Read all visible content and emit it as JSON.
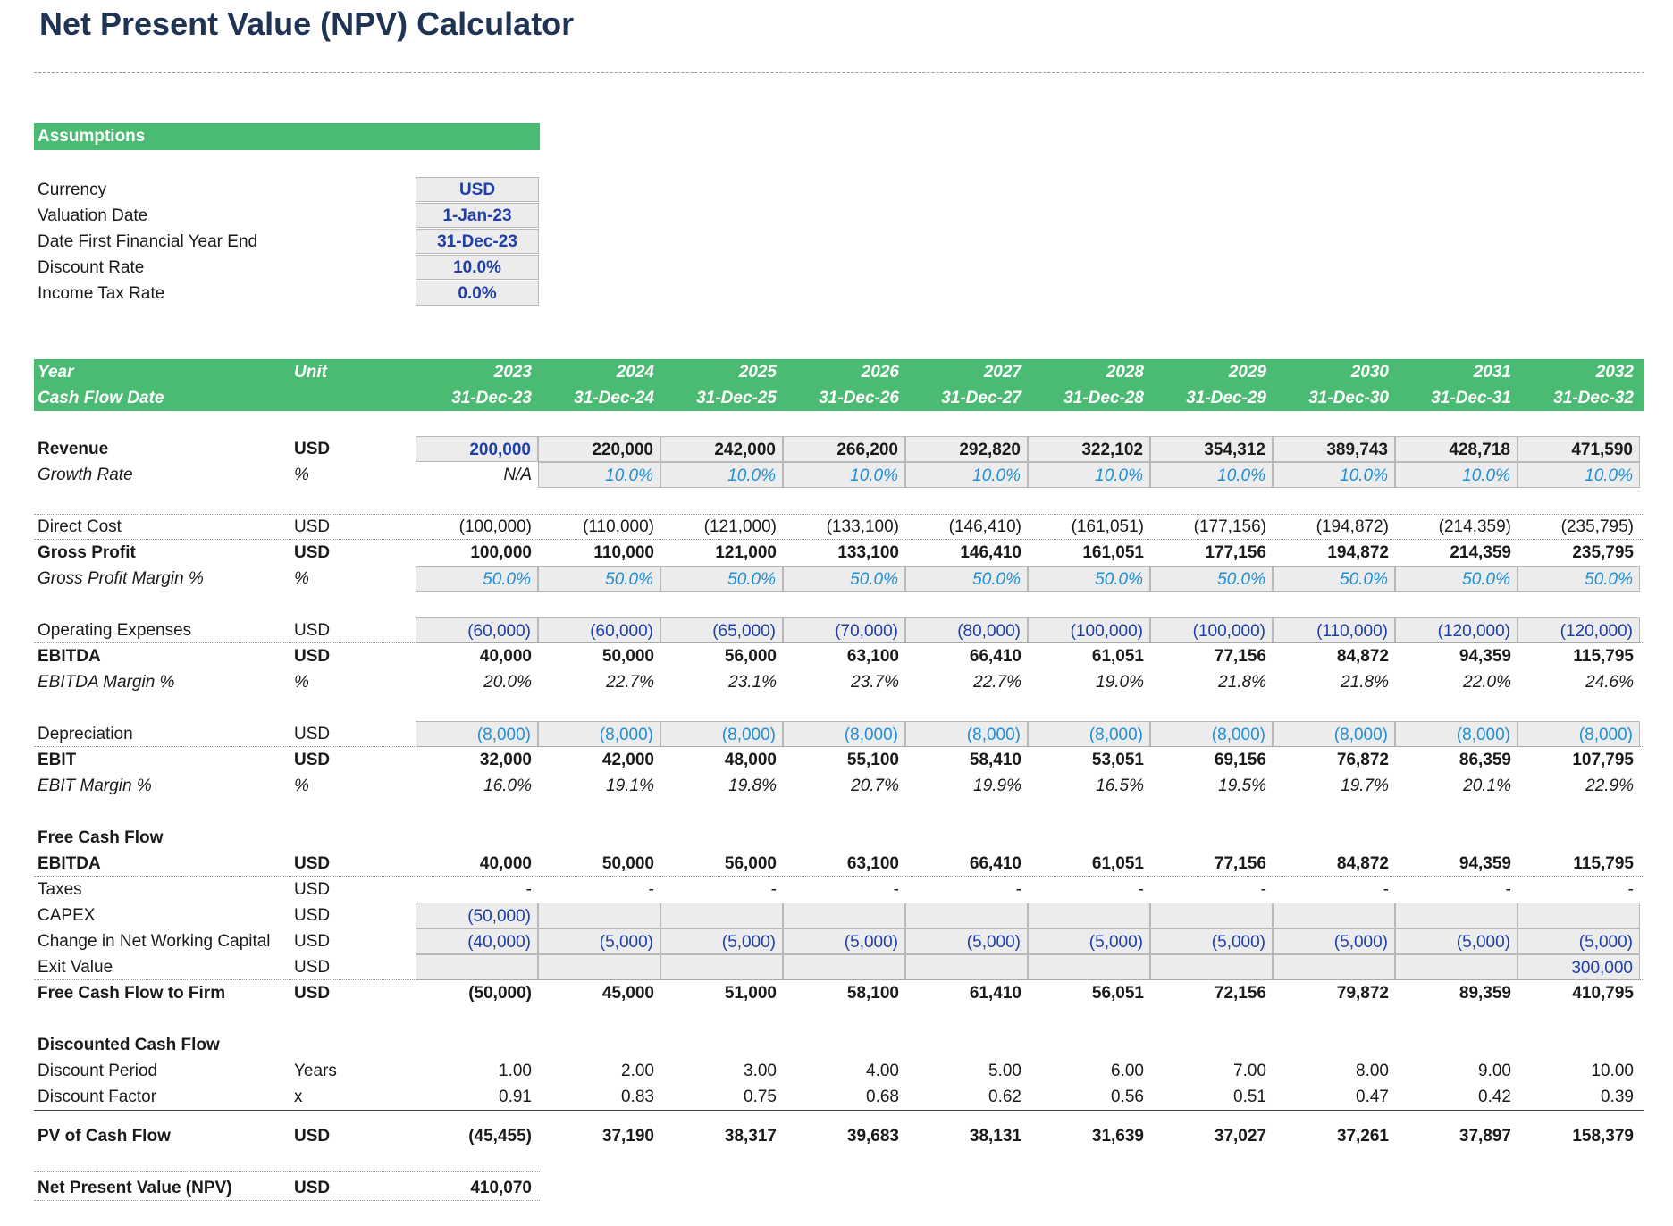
{
  "title": "Net Present Value (NPV) Calculator",
  "assumptions": {
    "header": "Assumptions",
    "items": [
      {
        "label": "Currency",
        "value": "USD"
      },
      {
        "label": "Valuation Date",
        "value": "1-Jan-23"
      },
      {
        "label": "Date First Financial Year End",
        "value": "31-Dec-23"
      },
      {
        "label": "Discount Rate",
        "value": "10.0%"
      },
      {
        "label": "Income Tax Rate",
        "value": "0.0%"
      }
    ]
  },
  "header": {
    "year_label": "Year",
    "unit_label": "Unit",
    "cfd_label": "Cash Flow Date",
    "years": [
      "2023",
      "2024",
      "2025",
      "2026",
      "2027",
      "2028",
      "2029",
      "2030",
      "2031",
      "2032"
    ],
    "dates": [
      "31-Dec-23",
      "31-Dec-24",
      "31-Dec-25",
      "31-Dec-26",
      "31-Dec-27",
      "31-Dec-28",
      "31-Dec-29",
      "31-Dec-30",
      "31-Dec-31",
      "31-Dec-32"
    ]
  },
  "rows": [
    {
      "label": "Revenue",
      "unit": "USD",
      "values": [
        "200,000",
        "220,000",
        "242,000",
        "266,200",
        "292,820",
        "322,102",
        "354,312",
        "389,743",
        "428,718",
        "471,590"
      ]
    },
    {
      "label": "Growth Rate",
      "unit": "%",
      "values": [
        "N/A",
        "10.0%",
        "10.0%",
        "10.0%",
        "10.0%",
        "10.0%",
        "10.0%",
        "10.0%",
        "10.0%",
        "10.0%"
      ]
    },
    {
      "label": "Direct Cost",
      "unit": "USD",
      "values": [
        "(100,000)",
        "(110,000)",
        "(121,000)",
        "(133,100)",
        "(146,410)",
        "(161,051)",
        "(177,156)",
        "(194,872)",
        "(214,359)",
        "(235,795)"
      ]
    },
    {
      "label": "Gross Profit",
      "unit": "USD",
      "values": [
        "100,000",
        "110,000",
        "121,000",
        "133,100",
        "146,410",
        "161,051",
        "177,156",
        "194,872",
        "214,359",
        "235,795"
      ]
    },
    {
      "label": "Gross Profit Margin %",
      "unit": "%",
      "values": [
        "50.0%",
        "50.0%",
        "50.0%",
        "50.0%",
        "50.0%",
        "50.0%",
        "50.0%",
        "50.0%",
        "50.0%",
        "50.0%"
      ]
    },
    {
      "label": "Operating Expenses",
      "unit": "USD",
      "values": [
        "(60,000)",
        "(60,000)",
        "(65,000)",
        "(70,000)",
        "(80,000)",
        "(100,000)",
        "(100,000)",
        "(110,000)",
        "(120,000)",
        "(120,000)"
      ]
    },
    {
      "label": "EBITDA",
      "unit": "USD",
      "values": [
        "40,000",
        "50,000",
        "56,000",
        "63,100",
        "66,410",
        "61,051",
        "77,156",
        "84,872",
        "94,359",
        "115,795"
      ]
    },
    {
      "label": "EBITDA Margin %",
      "unit": "%",
      "values": [
        "20.0%",
        "22.7%",
        "23.1%",
        "23.7%",
        "22.7%",
        "19.0%",
        "21.8%",
        "21.8%",
        "22.0%",
        "24.6%"
      ]
    },
    {
      "label": "Depreciation",
      "unit": "USD",
      "values": [
        "(8,000)",
        "(8,000)",
        "(8,000)",
        "(8,000)",
        "(8,000)",
        "(8,000)",
        "(8,000)",
        "(8,000)",
        "(8,000)",
        "(8,000)"
      ]
    },
    {
      "label": "EBIT",
      "unit": "USD",
      "values": [
        "32,000",
        "42,000",
        "48,000",
        "55,100",
        "58,410",
        "53,051",
        "69,156",
        "76,872",
        "86,359",
        "107,795"
      ]
    },
    {
      "label": "EBIT Margin %",
      "unit": "%",
      "values": [
        "16.0%",
        "19.1%",
        "19.8%",
        "20.7%",
        "19.9%",
        "16.5%",
        "19.5%",
        "19.7%",
        "20.1%",
        "22.9%"
      ]
    },
    {
      "label": "Free Cash Flow",
      "unit": "",
      "values": [
        "",
        "",
        "",
        "",
        "",
        "",
        "",
        "",
        "",
        ""
      ]
    },
    {
      "label": "EBITDA",
      "unit": "USD",
      "values": [
        "40,000",
        "50,000",
        "56,000",
        "63,100",
        "66,410",
        "61,051",
        "77,156",
        "84,872",
        "94,359",
        "115,795"
      ]
    },
    {
      "label": "Taxes",
      "unit": "USD",
      "values": [
        "-",
        "-",
        "-",
        "-",
        "-",
        "-",
        "-",
        "-",
        "-",
        "-"
      ]
    },
    {
      "label": "CAPEX",
      "unit": "USD",
      "values": [
        "(50,000)",
        "",
        "",
        "",
        "",
        "",
        "",
        "",
        "",
        ""
      ]
    },
    {
      "label": "Change in Net Working Capital",
      "unit": "USD",
      "values": [
        "(40,000)",
        "(5,000)",
        "(5,000)",
        "(5,000)",
        "(5,000)",
        "(5,000)",
        "(5,000)",
        "(5,000)",
        "(5,000)",
        "(5,000)"
      ]
    },
    {
      "label": "Exit Value",
      "unit": "USD",
      "values": [
        "",
        "",
        "",
        "",
        "",
        "",
        "",
        "",
        "",
        "300,000"
      ]
    },
    {
      "label": "Free Cash Flow to Firm",
      "unit": "USD",
      "values": [
        "(50,000)",
        "45,000",
        "51,000",
        "58,100",
        "61,410",
        "56,051",
        "72,156",
        "79,872",
        "89,359",
        "410,795"
      ]
    },
    {
      "label": "Discounted Cash Flow",
      "unit": "",
      "values": [
        "",
        "",
        "",
        "",
        "",
        "",
        "",
        "",
        "",
        ""
      ]
    },
    {
      "label": "Discount Period",
      "unit": "Years",
      "values": [
        "1.00",
        "2.00",
        "3.00",
        "4.00",
        "5.00",
        "6.00",
        "7.00",
        "8.00",
        "9.00",
        "10.00"
      ]
    },
    {
      "label": "Discount Factor",
      "unit": "x",
      "values": [
        "0.91",
        "0.83",
        "0.75",
        "0.68",
        "0.62",
        "0.56",
        "0.51",
        "0.47",
        "0.42",
        "0.39"
      ]
    },
    {
      "label": "PV of Cash Flow",
      "unit": "USD",
      "values": [
        "(45,455)",
        "37,190",
        "38,317",
        "39,683",
        "38,131",
        "31,639",
        "37,027",
        "37,261",
        "37,897",
        "158,379"
      ]
    }
  ],
  "npv": {
    "label": "Net Present Value (NPV)",
    "unit": "USD",
    "value": "410,070"
  },
  "colors": {
    "band": "#4bbb73",
    "title": "#1f3355",
    "input_blue": "#1f3fa8",
    "light_blue": "#1f8fd6"
  }
}
